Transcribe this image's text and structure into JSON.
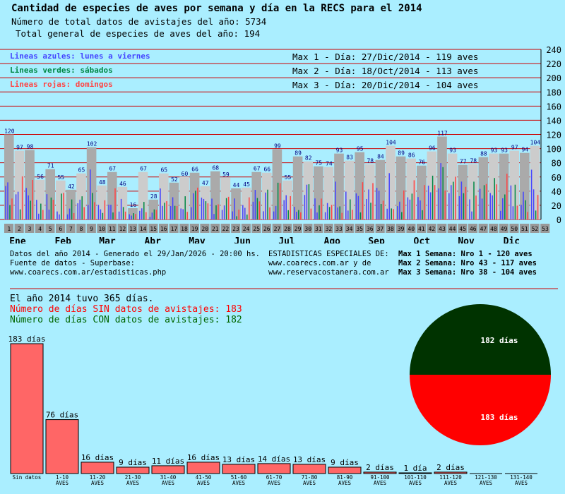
{
  "header": {
    "title": "Cantidad de especies de aves por semana y día en la RECS para el 2014",
    "total_records": "Número de total datos de avistajes del año: 5734",
    "total_species": "Total general de especies de aves del año: 194"
  },
  "legend": {
    "blue": "Lineas azules: lunes a viernes",
    "green": "Lineas verdes: sábados",
    "red": "Lineas rojas:  domingos"
  },
  "maxima": {
    "day1": "Max 1 - Día: 27/Dic/2014 - 119 aves",
    "day2": "Max 2 - Día: 18/Oct/2014 - 113 aves",
    "day3": "Max 3 - Día: 20/Dic/2014 - 104 aves",
    "week1": "Max 1 Semana: Nro 1 - 120 aves",
    "week2": "Max 2 Semana: Nro 43 - 117 aves",
    "week3": "Max 3 Semana: Nro 38 - 104 aves"
  },
  "footer": {
    "generated": "Datos del año 2014 - Generado el 29/Jan/2026 - 20:00 hs.",
    "source": "Fuente de datos - Superbase:",
    "url1": "www.coarecs.com.ar/estadisticas.php",
    "special": "ESTADISTICAS ESPECIALES DE:",
    "url2": "www.coarecs.com.ar y de",
    "url3": "www.reservacostanera.com.ar"
  },
  "summary": {
    "days": "El año 2014 tuvo 365 días.",
    "no_data": "Número de días SIN datos de avistajes: 183",
    "with_data": "Número de días CON datos de avistajes: 182"
  },
  "colors": {
    "background": "#aaeeff",
    "weekday": "#4444ff",
    "saturday": "#008844",
    "sunday": "#ff4444",
    "bar_dark": "#aaaaaa",
    "bar_light": "#cccccc",
    "hist_bar": "#ff6666",
    "pie_with": "#003300",
    "pie_without": "#ff0000",
    "grid": "#cc0000"
  },
  "chart_data": [
    {
      "type": "bar",
      "title": "Cantidad de especies de aves por semana y día en la RECS para el 2014",
      "ylim": [
        0,
        240
      ],
      "y_ticks": [
        0,
        20,
        40,
        60,
        80,
        100,
        120,
        140,
        160,
        180,
        200,
        220,
        240
      ],
      "grid": true,
      "week_labels": [
        "1",
        "2",
        "3",
        "4",
        "5",
        "6",
        "7",
        "8",
        "9",
        "10",
        "11",
        "12",
        "13",
        "14",
        "15",
        "16",
        "17",
        "18",
        "19",
        "20",
        "21",
        "22",
        "23",
        "24",
        "25",
        "26",
        "27",
        "28",
        "29",
        "30",
        "31",
        "32",
        "33",
        "34",
        "35",
        "36",
        "37",
        "38",
        "39",
        "40",
        "41",
        "42",
        "43",
        "44",
        "45",
        "46",
        "47",
        "48",
        "49",
        "50",
        "51",
        "52",
        "53"
      ],
      "months": [
        "Ene",
        "Feb",
        "Mar",
        "Abr",
        "May",
        "Jun",
        "Jul",
        "Ago",
        "Sep",
        "Oct",
        "Nov",
        "Dic"
      ],
      "series": [
        {
          "name": "Semanas",
          "values": [
            120,
            97,
            98,
            56,
            71,
            55,
            42,
            65,
            102,
            48,
            67,
            46,
            16,
            67,
            28,
            65,
            52,
            60,
            66,
            47,
            68,
            59,
            44,
            45,
            67,
            66,
            99,
            55,
            89,
            82,
            75,
            74,
            93,
            83,
            95,
            78,
            84,
            104,
            89,
            86,
            76,
            96,
            117,
            93,
            77,
            78,
            88,
            93,
            93,
            97,
            94,
            104,
            null
          ]
        }
      ]
    },
    {
      "type": "bar",
      "categories": [
        "Sin datos",
        "1-10 AVES",
        "11-20 AVES",
        "21-30 AVES",
        "31-40 AVES",
        "41-50 AVES",
        "51-60 AVES",
        "61-70 AVES",
        "71-80 AVES",
        "81-90 AVES",
        "91-100 AVES",
        "101-110 AVES",
        "111-120 AVES",
        "121-130 AVES",
        "131-140 AVES"
      ],
      "category_lines": [
        [
          "Sin datos"
        ],
        [
          "1-10",
          "AVES"
        ],
        [
          "11-20",
          "AVES"
        ],
        [
          "21-30",
          "AVES"
        ],
        [
          "31-40",
          "AVES"
        ],
        [
          "41-50",
          "AVES"
        ],
        [
          "51-60",
          "AVES"
        ],
        [
          "61-70",
          "AVES"
        ],
        [
          "71-80",
          "AVES"
        ],
        [
          "81-90",
          "AVES"
        ],
        [
          "91-100",
          "AVES"
        ],
        [
          "101-110",
          "AVES"
        ],
        [
          "111-120",
          "AVES"
        ],
        [
          "121-130",
          "AVES"
        ],
        [
          "131-140",
          "AVES"
        ]
      ],
      "values": [
        183,
        76,
        16,
        9,
        11,
        16,
        13,
        14,
        13,
        9,
        2,
        1,
        2,
        0,
        0
      ],
      "data_labels": [
        "183 días",
        "76 días",
        "16 días",
        "9 días",
        "11 días",
        "16 días",
        "13 días",
        "14 días",
        "13 días",
        "9 días",
        "2 días",
        "1 día",
        "2 días",
        "",
        ""
      ]
    },
    {
      "type": "pie",
      "categories": [
        "CON datos",
        "SIN datos"
      ],
      "values": [
        182,
        183
      ],
      "data_labels": [
        "182 días",
        "183 días"
      ]
    }
  ]
}
